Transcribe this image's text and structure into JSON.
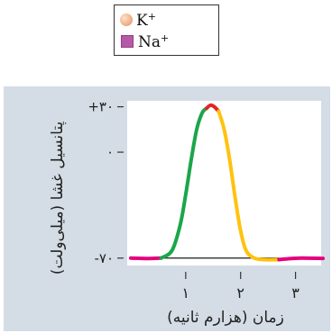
{
  "legend": {
    "items": [
      {
        "symbol": "K",
        "charge": "+",
        "color": "#eeb08b",
        "icon": "orange-ball-icon"
      },
      {
        "symbol": "Na",
        "charge": "+",
        "color": "#b65aa8",
        "icon": "purple-square-icon"
      }
    ]
  },
  "chart_data": {
    "type": "line",
    "xlabel": "زمان (هزارم ثانیه)",
    "ylabel": "پتانسیل غشا (میلی‌ولت)",
    "x_ticks": [
      {
        "value": 1,
        "label": "۱"
      },
      {
        "value": 2,
        "label": "۲"
      },
      {
        "value": 3,
        "label": "۳"
      }
    ],
    "y_ticks": [
      {
        "value": 30,
        "label": "+۳۰"
      },
      {
        "value": 0,
        "label": "۰"
      },
      {
        "value": -70,
        "label": "-۷۰"
      }
    ],
    "xlim": [
      0.0,
      3.5
    ],
    "ylim": [
      -85,
      50
    ],
    "baseline": -70,
    "grid": false,
    "series": [
      {
        "color": "#e5007e",
        "points": [
          [
            0.0,
            -70
          ],
          [
            0.3,
            -70.3
          ],
          [
            0.55,
            -70
          ]
        ]
      },
      {
        "color": "#1aa64a",
        "points": [
          [
            0.55,
            -70
          ],
          [
            0.75,
            -65
          ],
          [
            0.9,
            -48
          ],
          [
            1.0,
            -28
          ],
          [
            1.1,
            -5
          ],
          [
            1.2,
            15
          ],
          [
            1.3,
            26
          ],
          [
            1.38,
            29
          ]
        ]
      },
      {
        "color": "#e32526",
        "points": [
          [
            1.38,
            29
          ],
          [
            1.45,
            31
          ],
          [
            1.52,
            30
          ],
          [
            1.6,
            27
          ]
        ]
      },
      {
        "color": "#ffc20e",
        "points": [
          [
            1.6,
            27
          ],
          [
            1.7,
            15
          ],
          [
            1.8,
            -5
          ],
          [
            1.9,
            -30
          ],
          [
            2.0,
            -52
          ],
          [
            2.1,
            -65
          ],
          [
            2.25,
            -70
          ],
          [
            2.45,
            -71
          ],
          [
            2.7,
            -71
          ]
        ]
      },
      {
        "color": "#e5007e",
        "points": [
          [
            2.7,
            -71
          ],
          [
            2.85,
            -70.5
          ],
          [
            3.1,
            -70
          ],
          [
            3.5,
            -70.2
          ]
        ]
      }
    ]
  }
}
